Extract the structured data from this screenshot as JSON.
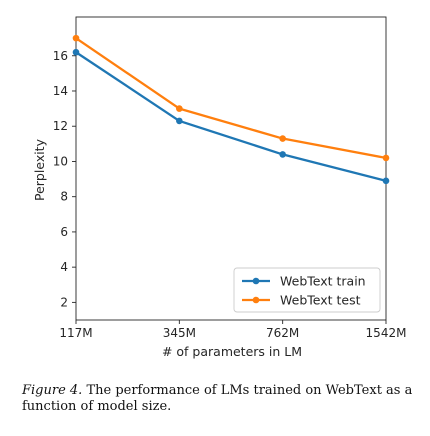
{
  "chart_data": {
    "type": "line",
    "categories": [
      "117M",
      "345M",
      "762M",
      "1542M"
    ],
    "x_ticks": [
      0,
      1,
      2,
      3
    ],
    "series": [
      {
        "name": "WebText train",
        "values": [
          16.2,
          12.3,
          10.4,
          8.9
        ],
        "color": "#1f77b4"
      },
      {
        "name": "WebText test",
        "values": [
          17.0,
          13.0,
          11.3,
          10.2
        ],
        "color": "#ff7f0e"
      }
    ],
    "xlabel": "# of parameters in LM",
    "ylabel": "Perplexity",
    "ylim": [
      1,
      18.2
    ],
    "yticks": [
      2,
      4,
      6,
      8,
      10,
      12,
      14,
      16
    ],
    "grid": false,
    "legend_position": "lower-right"
  },
  "caption": {
    "label": "Figure 4.",
    "text": " The performance of LMs trained on WebText as a function of model size."
  }
}
